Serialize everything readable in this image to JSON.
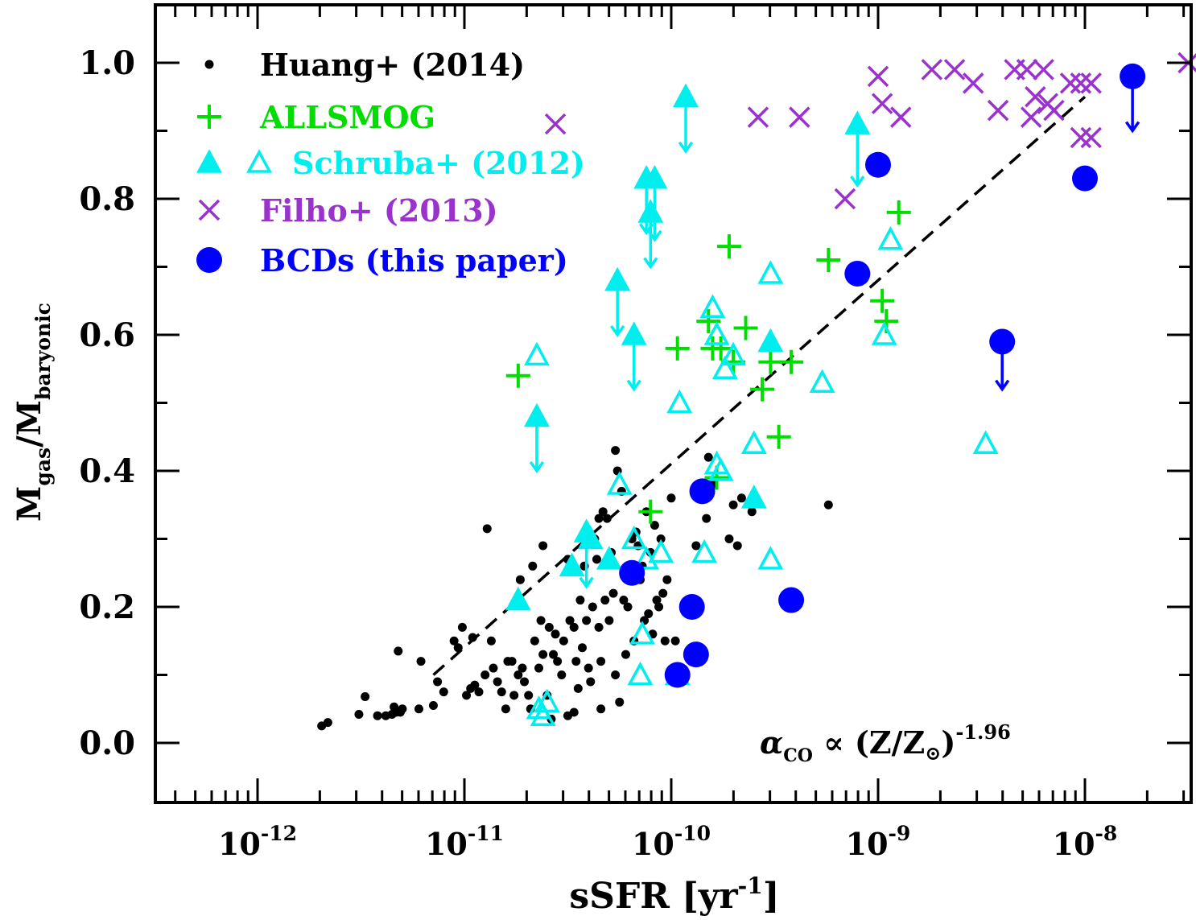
{
  "chart_data": {
    "type": "scatter",
    "xscale": "log",
    "xlim_log10": [
      -12.5,
      -7.45
    ],
    "ylim": [
      -0.09,
      1.09
    ],
    "xlabel": {
      "base": "sSFR [yr",
      "sup": "-1",
      "end": "]"
    },
    "ylabel": {
      "m1": "M",
      "sub1": "gas",
      "slash": "/M",
      "sub2": "baryonic"
    },
    "x_ticks": [
      {
        "exp": -12,
        "base": "10",
        "sup": "-12"
      },
      {
        "exp": -11,
        "base": "10",
        "sup": "-11"
      },
      {
        "exp": -10,
        "base": "10",
        "sup": "-10"
      },
      {
        "exp": -9,
        "base": "10",
        "sup": "-9"
      },
      {
        "exp": -8,
        "base": "10",
        "sup": "-8"
      }
    ],
    "y_ticks": [
      {
        "value": 0.0,
        "label": "0.0"
      },
      {
        "value": 0.2,
        "label": "0.2"
      },
      {
        "value": 0.4,
        "label": "0.4"
      },
      {
        "value": 0.6,
        "label": "0.6"
      },
      {
        "value": 0.8,
        "label": "0.8"
      },
      {
        "value": 1.0,
        "label": "1.0"
      }
    ],
    "annotation": {
      "text1": "α",
      "sub": "CO",
      "text2": " ∝ (Z/Z",
      "sun": "⊙",
      "text3": ")",
      "sup": "-1.96"
    },
    "fit_line": {
      "name": "dashed fit",
      "points": [
        [
          -11.15,
          0.1
        ],
        [
          -8.0,
          0.95
        ]
      ],
      "color": "#000000"
    },
    "series": [
      {
        "name": "Huang+ (2014)",
        "marker": "dot",
        "color": "#000000",
        "points": [
          [
            -11.69,
            0.025
          ],
          [
            -11.66,
            0.03
          ],
          [
            -11.51,
            0.042
          ],
          [
            -11.48,
            0.068
          ],
          [
            -11.42,
            0.04
          ],
          [
            -11.38,
            0.04
          ],
          [
            -11.35,
            0.042
          ],
          [
            -11.34,
            0.053
          ],
          [
            -11.33,
            0.045
          ],
          [
            -11.31,
            0.045
          ],
          [
            -11.3,
            0.05
          ],
          [
            -11.32,
            0.135
          ],
          [
            -11.22,
            0.05
          ],
          [
            -11.21,
            0.12
          ],
          [
            -11.15,
            0.055
          ],
          [
            -11.13,
            0.09
          ],
          [
            -11.1,
            0.075
          ],
          [
            -11.05,
            0.15
          ],
          [
            -11.03,
            0.14
          ],
          [
            -11.01,
            0.17
          ],
          [
            -10.99,
            0.07
          ],
          [
            -10.97,
            0.08
          ],
          [
            -10.96,
            0.155
          ],
          [
            -10.95,
            0.085
          ],
          [
            -10.93,
            0.075
          ],
          [
            -10.9,
            0.1
          ],
          [
            -10.89,
            0.315
          ],
          [
            -10.87,
            0.15
          ],
          [
            -10.86,
            0.11
          ],
          [
            -10.84,
            0.09
          ],
          [
            -10.82,
            0.075
          ],
          [
            -10.8,
            0.05
          ],
          [
            -10.79,
            0.12
          ],
          [
            -10.77,
            0.12
          ],
          [
            -10.76,
            0.07
          ],
          [
            -10.74,
            0.1
          ],
          [
            -10.73,
            0.24
          ],
          [
            -10.72,
            0.11
          ],
          [
            -10.71,
            0.09
          ],
          [
            -10.69,
            0.07
          ],
          [
            -10.68,
            0.05
          ],
          [
            -10.67,
            0.26
          ],
          [
            -10.66,
            0.15
          ],
          [
            -10.64,
            0.11
          ],
          [
            -10.63,
            0.18
          ],
          [
            -10.62,
            0.29
          ],
          [
            -10.62,
            0.13
          ],
          [
            -10.6,
            0.07
          ],
          [
            -10.59,
            0.17
          ],
          [
            -10.58,
            0.035
          ],
          [
            -10.57,
            0.13
          ],
          [
            -10.56,
            0.16
          ],
          [
            -10.55,
            0.12
          ],
          [
            -10.53,
            0.1
          ],
          [
            -10.52,
            0.15
          ],
          [
            -10.5,
            0.04
          ],
          [
            -10.5,
            0.27
          ],
          [
            -10.49,
            0.18
          ],
          [
            -10.47,
            0.045
          ],
          [
            -10.47,
            0.17
          ],
          [
            -10.46,
            0.12
          ],
          [
            -10.45,
            0.08
          ],
          [
            -10.44,
            0.21
          ],
          [
            -10.43,
            0.14
          ],
          [
            -10.42,
            0.26
          ],
          [
            -10.41,
            0.18
          ],
          [
            -10.4,
            0.11
          ],
          [
            -10.39,
            0.09
          ],
          [
            -10.38,
            0.2
          ],
          [
            -10.37,
            0.3
          ],
          [
            -10.36,
            0.27
          ],
          [
            -10.35,
            0.17
          ],
          [
            -10.35,
            0.33
          ],
          [
            -10.34,
            0.05
          ],
          [
            -10.34,
            0.12
          ],
          [
            -10.33,
            0.34
          ],
          [
            -10.32,
            0.21
          ],
          [
            -10.31,
            0.33
          ],
          [
            -10.3,
            0.18
          ],
          [
            -10.29,
            0.28
          ],
          [
            -10.28,
            0.22
          ],
          [
            -10.27,
            0.1
          ],
          [
            -10.27,
            0.43
          ],
          [
            -10.26,
            0.4
          ],
          [
            -10.25,
            0.06
          ],
          [
            -10.24,
            0.37
          ],
          [
            -10.23,
            0.21
          ],
          [
            -10.22,
            0.13
          ],
          [
            -10.21,
            0.2
          ],
          [
            -10.2,
            0.25
          ],
          [
            -10.19,
            0.3
          ],
          [
            -10.18,
            0.15
          ],
          [
            -10.17,
            0.31
          ],
          [
            -10.16,
            0.29
          ],
          [
            -10.15,
            0.24
          ],
          [
            -10.14,
            0.26
          ],
          [
            -10.13,
            0.18
          ],
          [
            -10.12,
            0.34
          ],
          [
            -10.11,
            0.19
          ],
          [
            -10.1,
            0.28
          ],
          [
            -10.09,
            0.16
          ],
          [
            -10.08,
            0.32
          ],
          [
            -10.07,
            0.21
          ],
          [
            -10.06,
            0.2
          ],
          [
            -10.05,
            0.3
          ],
          [
            -10.04,
            0.22
          ],
          [
            -10.03,
            0.15
          ],
          [
            -10.02,
            0.24
          ],
          [
            -10.0,
            0.36
          ],
          [
            -9.98,
            0.15
          ],
          [
            -9.88,
            0.29
          ],
          [
            -9.83,
            0.33
          ],
          [
            -9.82,
            0.42
          ],
          [
            -9.8,
            0.38
          ],
          [
            -9.72,
            0.3
          ],
          [
            -9.7,
            0.35
          ],
          [
            -9.68,
            0.29
          ],
          [
            -9.66,
            0.36
          ],
          [
            -9.61,
            0.34
          ],
          [
            -9.24,
            0.35
          ]
        ]
      },
      {
        "name": "ALLSMOG",
        "marker": "plus",
        "color": "#00dd00",
        "points": [
          [
            -10.74,
            0.54
          ],
          [
            -10.1,
            0.34
          ],
          [
            -9.97,
            0.58
          ],
          [
            -9.82,
            0.62
          ],
          [
            -9.8,
            0.58
          ],
          [
            -9.76,
            0.58
          ],
          [
            -9.72,
            0.73
          ],
          [
            -9.7,
            0.56
          ],
          [
            -9.64,
            0.61
          ],
          [
            -9.56,
            0.52
          ],
          [
            -9.52,
            0.56
          ],
          [
            -9.48,
            0.45
          ],
          [
            -9.42,
            0.56
          ],
          [
            -9.24,
            0.71
          ],
          [
            -8.9,
            0.78
          ],
          [
            -8.98,
            0.65
          ],
          [
            -8.96,
            0.62
          ],
          [
            -9.78,
            0.39
          ]
        ]
      },
      {
        "name": "Schruba+ (2012)",
        "marker": "triangle",
        "color": "#00eeee",
        "filled": [
          [
            -10.74,
            0.21
          ],
          [
            -10.48,
            0.26
          ],
          [
            -10.39,
            0.3
          ],
          [
            -10.3,
            0.27
          ],
          [
            -9.6,
            0.36
          ],
          [
            -9.52,
            0.59
          ]
        ],
        "open": [
          [
            -10.65,
            0.57
          ],
          [
            -10.6,
            0.06
          ],
          [
            -10.64,
            0.05
          ],
          [
            -10.62,
            0.04
          ],
          [
            -10.25,
            0.38
          ],
          [
            -10.15,
            0.1
          ],
          [
            -10.14,
            0.16
          ],
          [
            -10.18,
            0.3
          ],
          [
            -10.12,
            0.27
          ],
          [
            -10.05,
            0.28
          ],
          [
            -9.97,
            0.1
          ],
          [
            -9.96,
            0.5
          ],
          [
            -9.84,
            0.28
          ],
          [
            -9.8,
            0.64
          ],
          [
            -9.78,
            0.6
          ],
          [
            -9.74,
            0.55
          ],
          [
            -9.7,
            0.57
          ],
          [
            -9.78,
            0.41
          ],
          [
            -9.76,
            0.4
          ],
          [
            -9.6,
            0.44
          ],
          [
            -9.52,
            0.27
          ],
          [
            -9.52,
            0.69
          ],
          [
            -9.27,
            0.53
          ],
          [
            -8.94,
            0.74
          ],
          [
            -8.97,
            0.6
          ],
          [
            -8.48,
            0.44
          ]
        ],
        "arrows": [
          [
            -10.65,
            0.48,
            0.4
          ],
          [
            -10.26,
            0.68,
            0.6
          ],
          [
            -10.18,
            0.6,
            0.52
          ],
          [
            -10.12,
            0.83,
            0.75
          ],
          [
            -10.08,
            0.83,
            0.74
          ],
          [
            -10.1,
            0.78,
            0.7
          ],
          [
            -9.93,
            0.95,
            0.87
          ],
          [
            -9.1,
            0.91,
            0.82
          ],
          [
            -10.41,
            0.31,
            0.23
          ]
        ]
      },
      {
        "name": "Filho+ (2013)",
        "marker": "cross",
        "color": "#9933cc",
        "points": [
          [
            -10.56,
            0.91
          ],
          [
            -9.58,
            0.92
          ],
          [
            -9.38,
            0.92
          ],
          [
            -9.16,
            0.8
          ],
          [
            -9.0,
            0.98
          ],
          [
            -8.98,
            0.94
          ],
          [
            -8.89,
            0.92
          ],
          [
            -8.74,
            0.99
          ],
          [
            -8.63,
            0.99
          ],
          [
            -8.54,
            0.97
          ],
          [
            -8.42,
            0.93
          ],
          [
            -8.34,
            0.99
          ],
          [
            -8.28,
            0.99
          ],
          [
            -8.26,
            0.92
          ],
          [
            -8.24,
            0.95
          ],
          [
            -8.2,
            0.99
          ],
          [
            -8.18,
            0.94
          ],
          [
            -8.15,
            0.93
          ],
          [
            -8.07,
            0.97
          ],
          [
            -8.02,
            0.89
          ],
          [
            -8.02,
            0.97
          ],
          [
            -7.97,
            0.89
          ],
          [
            -7.97,
            0.97
          ],
          [
            -7.5,
            1.0
          ]
        ]
      },
      {
        "name": "BCDs (this paper)",
        "marker": "circle",
        "color": "#0000ff",
        "points": [
          [
            -10.19,
            0.25
          ],
          [
            -9.97,
            0.1
          ],
          [
            -9.9,
            0.2
          ],
          [
            -9.88,
            0.13
          ],
          [
            -9.85,
            0.37
          ],
          [
            -9.42,
            0.21
          ],
          [
            -9.1,
            0.69
          ],
          [
            -9.0,
            0.85
          ],
          [
            -8.4,
            0.59
          ],
          [
            -8.0,
            0.83
          ],
          [
            -7.77,
            0.98
          ]
        ],
        "arrows": [
          [
            -8.4,
            0.59,
            0.52
          ],
          [
            -7.77,
            0.98,
            0.9
          ]
        ]
      }
    ]
  }
}
